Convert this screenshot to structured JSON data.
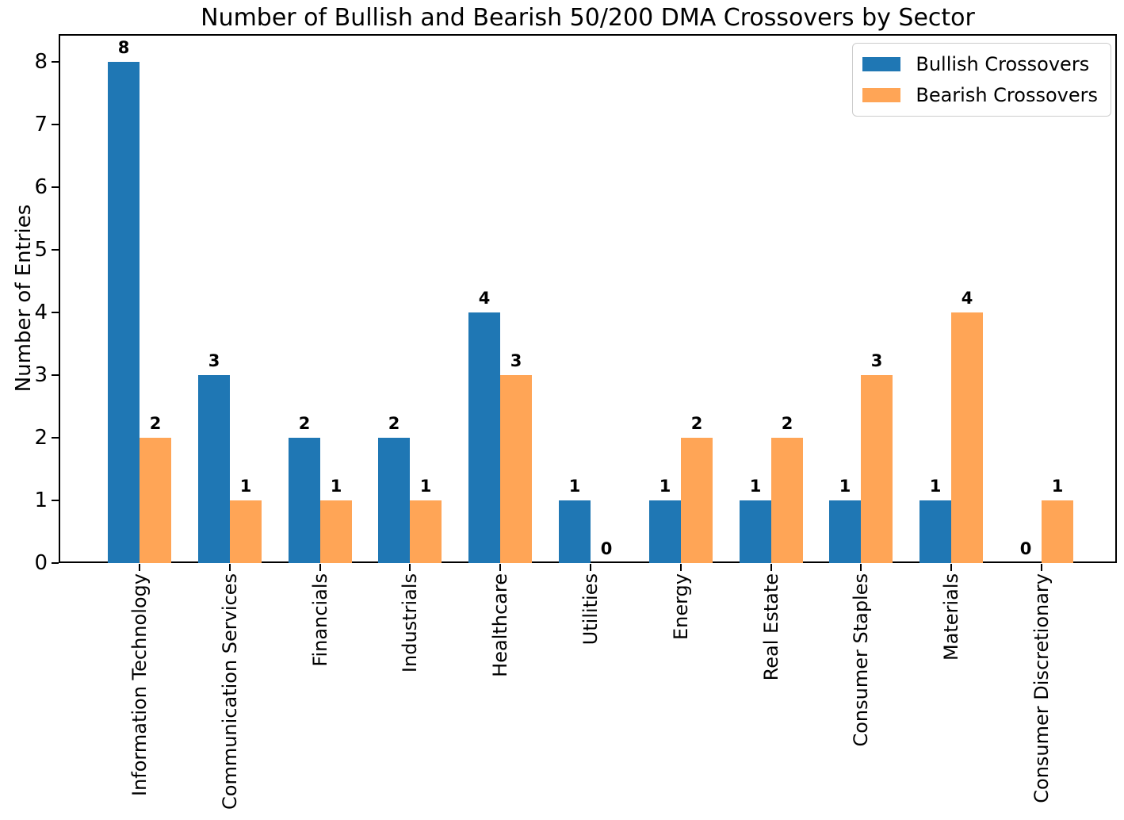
{
  "title": "Number of Bullish and Bearish 50/200 DMA Crossovers by Sector",
  "chart_data": {
    "type": "bar",
    "title": "Number of Bullish and Bearish 50/200 DMA Crossovers by Sector",
    "xlabel": "",
    "ylabel": "Number of Entries",
    "categories": [
      "Information Technology",
      "Communication Services",
      "Financials",
      "Industrials",
      "Healthcare",
      "Utilities",
      "Energy",
      "Real Estate",
      "Consumer Staples",
      "Materials",
      "Consumer Discretionary"
    ],
    "series": [
      {
        "name": "Bullish Crossovers",
        "color": "#1f77b4",
        "values": [
          8,
          3,
          2,
          2,
          4,
          1,
          1,
          1,
          1,
          1,
          0
        ]
      },
      {
        "name": "Bearish Crossovers",
        "color": "#ffa556",
        "values": [
          2,
          1,
          1,
          1,
          3,
          0,
          2,
          2,
          3,
          4,
          1
        ]
      }
    ],
    "yticks": [
      0,
      1,
      2,
      3,
      4,
      5,
      6,
      7,
      8
    ],
    "ylim": [
      0,
      8.44
    ],
    "grid": false,
    "bar_value_labels": true,
    "legend_position": "upper right"
  }
}
